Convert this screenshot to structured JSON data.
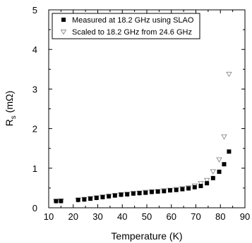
{
  "chart_data": {
    "type": "scatter",
    "xlabel": "Temperature (K)",
    "ylabel": {
      "main": "R",
      "sub": "s",
      "rest": " (mΩ)"
    },
    "xlim": [
      10,
      90
    ],
    "ylim": [
      0,
      5
    ],
    "xticks": [
      10,
      20,
      30,
      40,
      50,
      60,
      70,
      80,
      90
    ],
    "yticks": [
      0,
      1,
      2,
      3,
      4,
      5
    ],
    "grid": false,
    "legend_position": "top-left",
    "series": [
      {
        "name": "Measured at 18.2 GHz using SLAO",
        "marker": "filled-square",
        "color": "#000000",
        "x": [
          13,
          15,
          22,
          24.5,
          27,
          29.5,
          32,
          34.5,
          37,
          39.5,
          42,
          44.5,
          47,
          49.5,
          52,
          54.5,
          57,
          59.5,
          62,
          64.5,
          67,
          69.5,
          72,
          74.5,
          77,
          79.5,
          81.5,
          83.5
        ],
        "y": [
          0.17,
          0.17,
          0.2,
          0.21,
          0.23,
          0.25,
          0.27,
          0.29,
          0.31,
          0.33,
          0.34,
          0.36,
          0.37,
          0.38,
          0.4,
          0.41,
          0.42,
          0.44,
          0.45,
          0.47,
          0.49,
          0.52,
          0.55,
          0.62,
          0.75,
          0.91,
          1.1,
          1.42
        ]
      },
      {
        "name": "Scaled to 18.2 GHz from 24.6 GHz",
        "marker": "open-triangle-down",
        "color": "#888888",
        "x": [
          13,
          15,
          22,
          24.5,
          27,
          29.5,
          32,
          34.5,
          37,
          39.5,
          42,
          44.5,
          47,
          49.5,
          52,
          54.5,
          57,
          59.5,
          62,
          64.5,
          67,
          69.5,
          72,
          74.5,
          77,
          79.5,
          81.5,
          83.5
        ],
        "y": [
          0.17,
          0.18,
          0.2,
          0.22,
          0.24,
          0.26,
          0.28,
          0.3,
          0.32,
          0.34,
          0.35,
          0.37,
          0.38,
          0.4,
          0.41,
          0.42,
          0.44,
          0.45,
          0.47,
          0.49,
          0.51,
          0.56,
          0.62,
          0.7,
          0.92,
          1.22,
          1.8,
          3.38
        ]
      }
    ]
  }
}
